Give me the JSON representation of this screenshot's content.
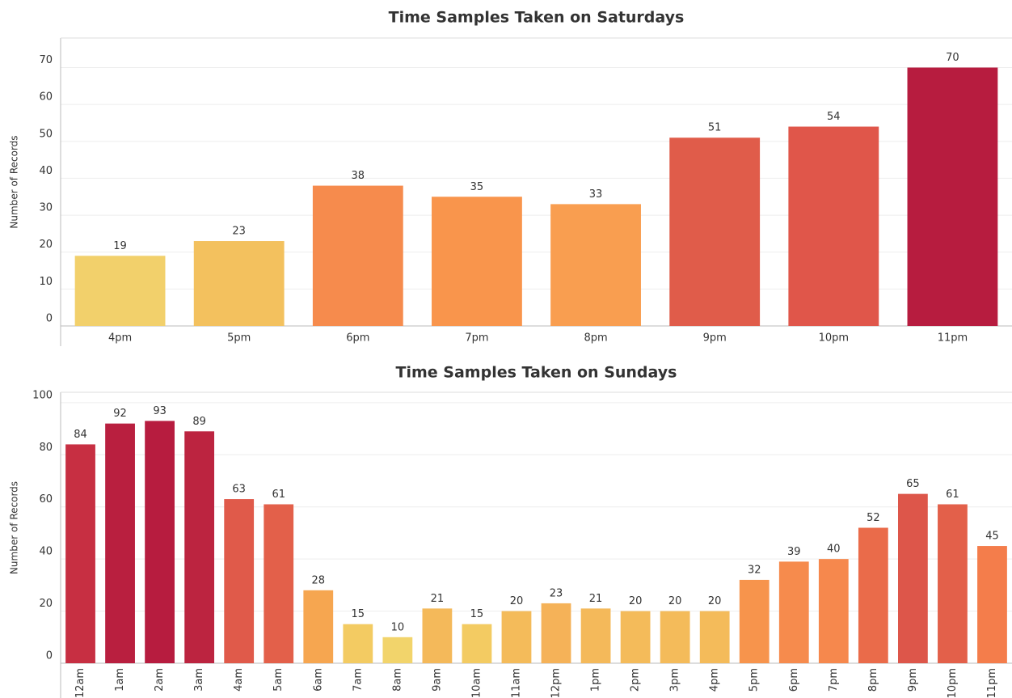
{
  "chart_data": [
    {
      "type": "bar",
      "title": "Time Samples Taken on Saturdays",
      "y_label": "Number of Records",
      "categories": [
        "4pm",
        "5pm",
        "6pm",
        "7pm",
        "8pm",
        "9pm",
        "10pm",
        "11pm"
      ],
      "values": [
        19,
        23,
        38,
        35,
        33,
        51,
        54,
        70
      ],
      "colors": [
        "#f2d06b",
        "#f3c15e",
        "#f68b4d",
        "#f9954c",
        "#f99e50",
        "#e05c4a",
        "#e0564a",
        "#b71c3f"
      ],
      "ylim": [
        0,
        78
      ],
      "yticks": [
        0,
        10,
        20,
        30,
        40,
        50,
        60,
        70
      ],
      "grid": true
    },
    {
      "type": "bar",
      "title": "Time Samples Taken on Sundays",
      "y_label": "Number of Records",
      "categories": [
        "12am",
        "1am",
        "2am",
        "3am",
        "4am",
        "5am",
        "6am",
        "7am",
        "8am",
        "9am",
        "10am",
        "11am",
        "12pm",
        "1pm",
        "2pm",
        "3pm",
        "4pm",
        "5pm",
        "6pm",
        "7pm",
        "8pm",
        "9pm",
        "10pm",
        "11pm"
      ],
      "values": [
        84,
        92,
        93,
        89,
        63,
        61,
        28,
        15,
        10,
        21,
        15,
        20,
        23,
        21,
        20,
        20,
        20,
        32,
        39,
        40,
        52,
        65,
        61,
        45
      ],
      "colors": [
        "#c72f42",
        "#b91f3f",
        "#b71c3f",
        "#bc2440",
        "#e05a4a",
        "#e3604a",
        "#f6a650",
        "#f3cb62",
        "#f2d46b",
        "#f4b95a",
        "#f3cb62",
        "#f4bb5a",
        "#f5b258",
        "#f4b95a",
        "#f4bb5a",
        "#f4bb5a",
        "#f4bb5a",
        "#f7944c",
        "#f68b4d",
        "#f6884d",
        "#ea6b4a",
        "#dd564a",
        "#e3604a",
        "#f47d4b"
      ],
      "ylim": [
        0,
        104
      ],
      "yticks": [
        0,
        20,
        40,
        60,
        80,
        100
      ],
      "grid": true
    }
  ]
}
